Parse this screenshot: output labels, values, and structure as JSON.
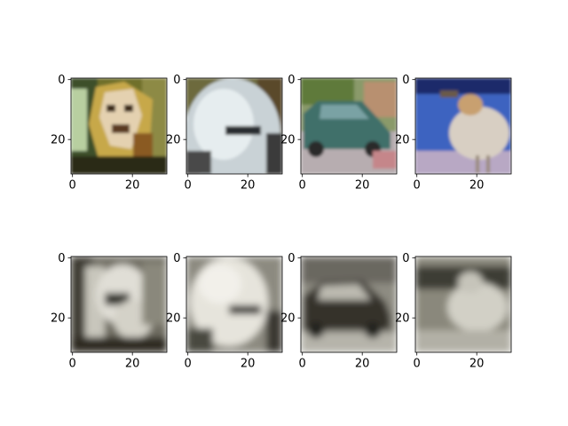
{
  "chart_data": {
    "type": "image-grid",
    "rows": 2,
    "cols": 4,
    "panels": [
      {
        "row": 0,
        "col": 0,
        "content": "color image: cat/dog face",
        "xticks": [
          "0",
          "20"
        ],
        "yticks": [
          "0",
          "20"
        ],
        "xlim": [
          -0.5,
          31.5
        ],
        "ylim": [
          31.5,
          -0.5
        ]
      },
      {
        "row": 0,
        "col": 1,
        "content": "color image: airplane",
        "xticks": [
          "0",
          "20"
        ],
        "yticks": [
          "0",
          "20"
        ],
        "xlim": [
          -0.5,
          31.5
        ],
        "ylim": [
          31.5,
          -0.5
        ]
      },
      {
        "row": 0,
        "col": 2,
        "content": "color image: car",
        "xticks": [
          "0",
          "20"
        ],
        "yticks": [
          "0",
          "20"
        ],
        "xlim": [
          -0.5,
          31.5
        ],
        "ylim": [
          31.5,
          -0.5
        ]
      },
      {
        "row": 0,
        "col": 3,
        "content": "color image: bird",
        "xticks": [
          "0",
          "20"
        ],
        "yticks": [
          "0",
          "20"
        ],
        "xlim": [
          -0.5,
          31.5
        ],
        "ylim": [
          31.5,
          -0.5
        ]
      },
      {
        "row": 1,
        "col": 0,
        "content": "blurry grayscale reconstruction",
        "xticks": [
          "0",
          "20"
        ],
        "yticks": [
          "0",
          "20"
        ],
        "xlim": [
          -0.5,
          31.5
        ],
        "ylim": [
          31.5,
          -0.5
        ]
      },
      {
        "row": 1,
        "col": 1,
        "content": "blurry grayscale reconstruction",
        "xticks": [
          "0",
          "20"
        ],
        "yticks": [
          "0",
          "20"
        ],
        "xlim": [
          -0.5,
          31.5
        ],
        "ylim": [
          31.5,
          -0.5
        ]
      },
      {
        "row": 1,
        "col": 2,
        "content": "blurry grayscale reconstruction",
        "xticks": [
          "0",
          "20"
        ],
        "yticks": [
          "0",
          "20"
        ],
        "xlim": [
          -0.5,
          31.5
        ],
        "ylim": [
          31.5,
          -0.5
        ]
      },
      {
        "row": 1,
        "col": 3,
        "content": "blurry grayscale reconstruction",
        "xticks": [
          "0",
          "20"
        ],
        "yticks": [
          "0",
          "20"
        ],
        "xlim": [
          -0.5,
          31.5
        ],
        "ylim": [
          31.5,
          -0.5
        ]
      }
    ]
  },
  "colors": {
    "background": "#ffffff",
    "axis": "#000000"
  }
}
